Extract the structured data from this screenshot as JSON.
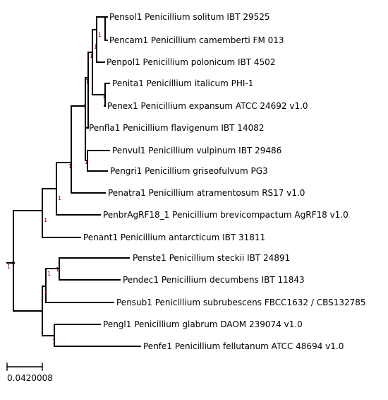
{
  "tree": {
    "leaves": [
      {
        "id": "solitum",
        "label": "Pensol1 Penicillium solitum IBT 29525"
      },
      {
        "id": "camemb",
        "label": "Pencam1 Penicillium camemberti FM 013"
      },
      {
        "id": "polonic",
        "label": "Penpol1 Penicillium polonicum IBT 4502"
      },
      {
        "id": "italicum",
        "label": "Penita1 Penicillium italicum PHI-1"
      },
      {
        "id": "expansum",
        "label": "Penex1 Penicillium expansum ATCC 24692 v1.0"
      },
      {
        "id": "flavig",
        "label": "Penfla1 Penicillium flavigenum IBT 14082"
      },
      {
        "id": "vulpinum",
        "label": "Penvul1 Penicillium vulpinum IBT 29486"
      },
      {
        "id": "griseo",
        "label": "Pengri1 Penicillium griseofulvum PG3"
      },
      {
        "id": "atrament",
        "label": "Penatra1 Penicillium atramentosum RS17 v1.0"
      },
      {
        "id": "brevicomp",
        "label": "PenbrAgRF18_1 Penicillium brevicompactum AgRF18 v1.0"
      },
      {
        "id": "antarct",
        "label": "Penant1 Penicillium antarcticum IBT 31811"
      },
      {
        "id": "steckii",
        "label": "Penste1 Penicillium steckii IBT 24891"
      },
      {
        "id": "decumb",
        "label": "Pendec1 Penicillium decumbens IBT 11843"
      },
      {
        "id": "subrub",
        "label": "Pensub1 Penicillium subrubescens FBCC1632 / CBS132785"
      },
      {
        "id": "glabrum",
        "label": "Pengl1 Penicillium glabrum DAOM 239074 v1.0"
      },
      {
        "id": "fellut",
        "label": "Penfe1 Penicillium fellutanum ATCC 48694 v1.0"
      }
    ],
    "support_value": "1",
    "root_support": "1",
    "scale_bar_label": "0.0420008",
    "colors": {
      "branch": "#000000",
      "support": "#8b0000",
      "root_dot": "#000000"
    }
  }
}
